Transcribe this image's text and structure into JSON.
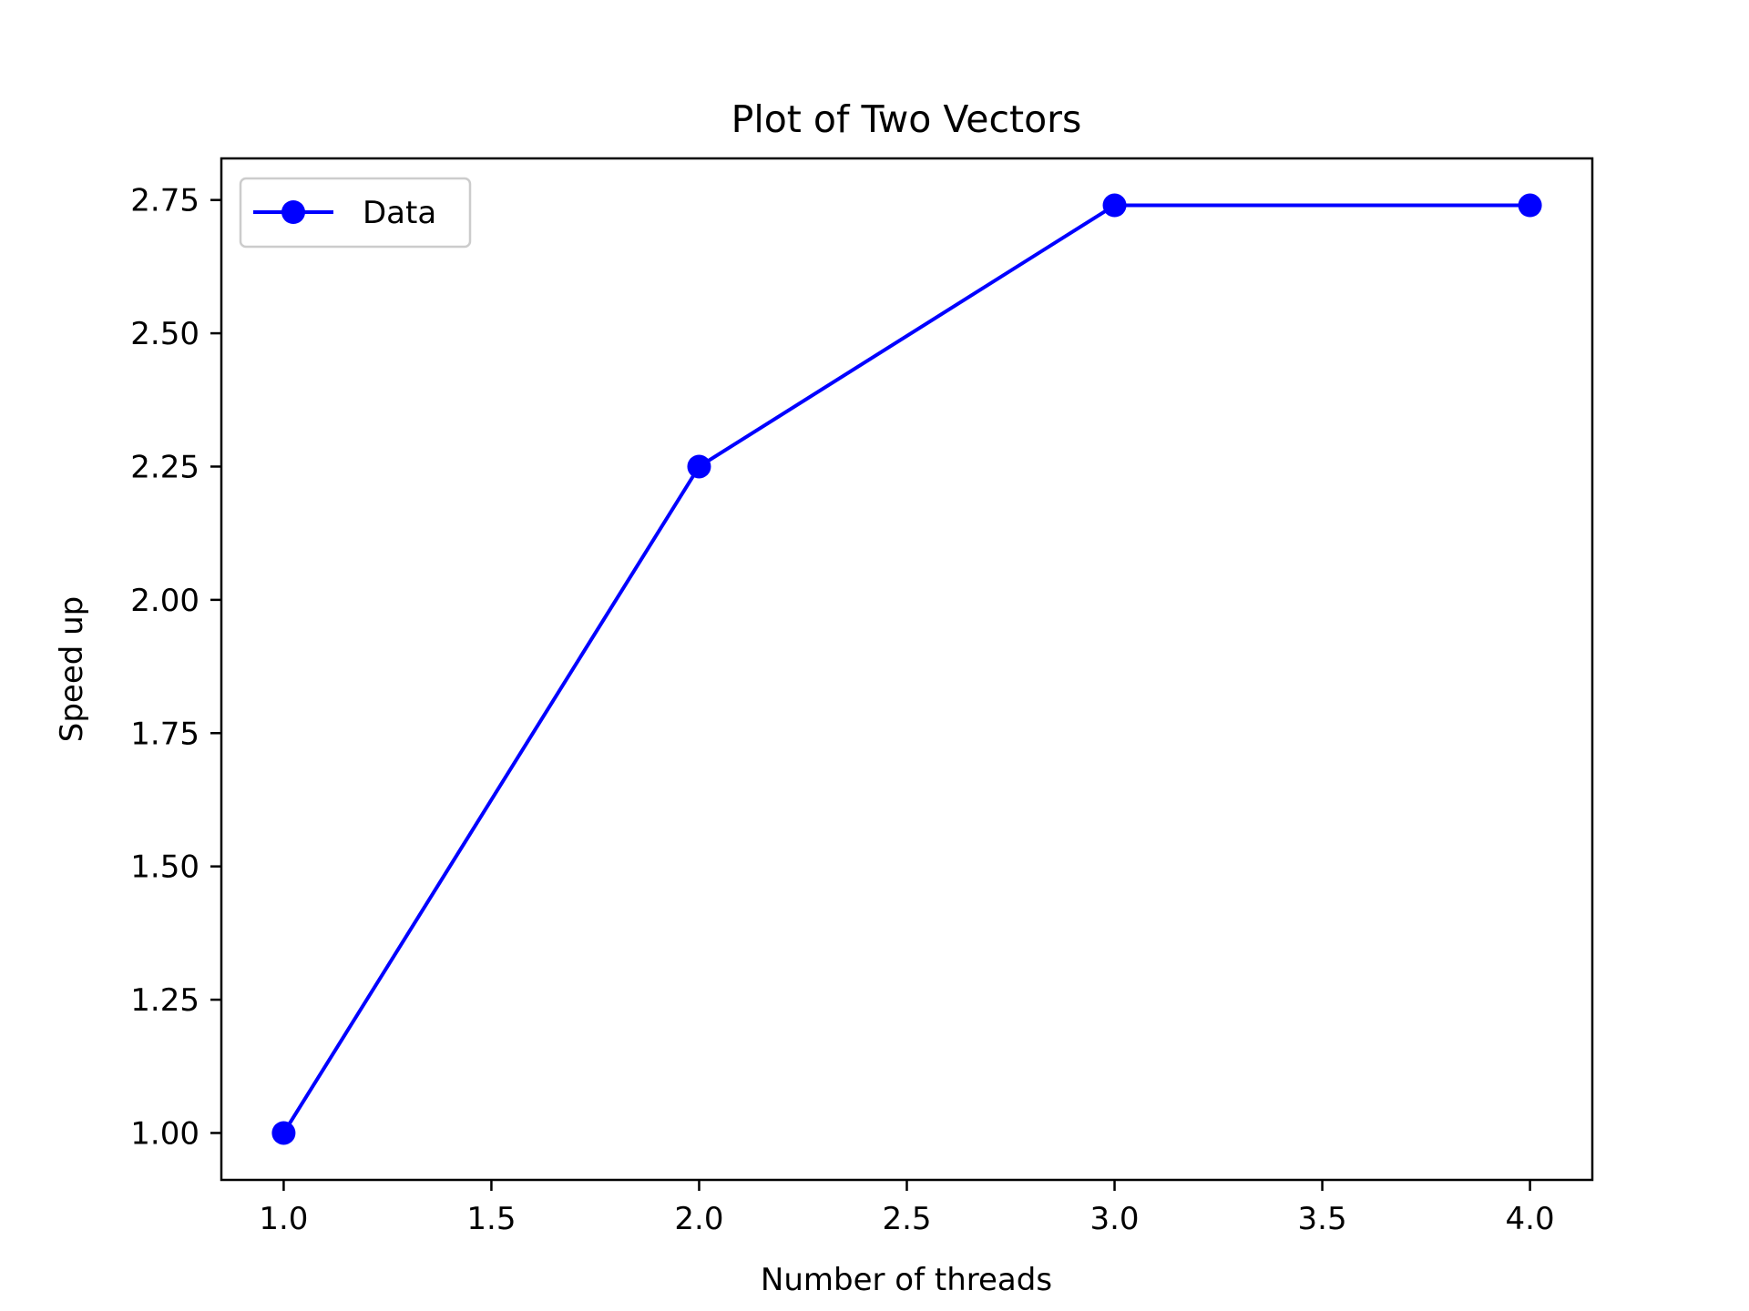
{
  "chart_data": {
    "type": "line",
    "title": "Plot of Two Vectors",
    "xlabel": "Number of threads",
    "ylabel": "Speed up",
    "x": [
      1,
      2,
      3,
      4
    ],
    "series": [
      {
        "name": "Data",
        "values": [
          1.0,
          2.25,
          2.74,
          2.74
        ],
        "color": "#0000ff",
        "marker": "circle"
      }
    ],
    "xlim": [
      0.85,
      4.15
    ],
    "ylim": [
      0.912,
      2.828
    ],
    "xticks": [
      1.0,
      1.5,
      2.0,
      2.5,
      3.0,
      3.5,
      4.0
    ],
    "xtick_labels": [
      "1.0",
      "1.5",
      "2.0",
      "2.5",
      "3.0",
      "3.5",
      "4.0"
    ],
    "yticks": [
      1.0,
      1.25,
      1.5,
      1.75,
      2.0,
      2.25,
      2.5,
      2.75
    ],
    "ytick_labels": [
      "1.00",
      "1.25",
      "1.50",
      "1.75",
      "2.00",
      "2.25",
      "2.50",
      "2.75"
    ],
    "grid": false,
    "legend_position": "upper left"
  }
}
